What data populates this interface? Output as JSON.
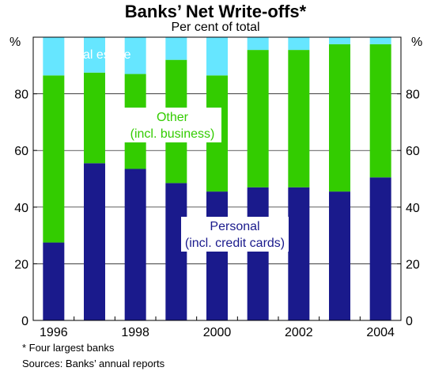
{
  "chart_data": {
    "type": "bar",
    "stacked": true,
    "title": "Banks’ Net Write-offs*",
    "subtitle": "Per cent of total",
    "ylabel_left": "%",
    "ylabel_right": "%",
    "ylim": [
      0,
      100
    ],
    "yticks": [
      0,
      20,
      40,
      60,
      80
    ],
    "xticks": [
      "1996",
      "1998",
      "2000",
      "2002",
      "2004"
    ],
    "categories": [
      "1996",
      "1997",
      "1998",
      "1999",
      "2000",
      "2001",
      "2002",
      "2003",
      "2004"
    ],
    "series": [
      {
        "key": "personal",
        "name": "Personal",
        "sublabel": "(incl. credit cards)",
        "color": "#1a1a8c",
        "values": [
          27.5,
          55.5,
          53.5,
          48.5,
          45.5,
          47,
          47,
          45.5,
          50.5
        ]
      },
      {
        "key": "other",
        "name": "Other",
        "sublabel": "(incl. business)",
        "color": "#33cc00",
        "values": [
          59,
          32,
          33.5,
          43.5,
          41,
          48.5,
          48.5,
          52,
          47
        ]
      },
      {
        "key": "realestate",
        "name": "Real estate",
        "sublabel": "",
        "color": "#66e6ff",
        "values": [
          13.5,
          12.5,
          13,
          8,
          13.5,
          4.5,
          4.5,
          2.5,
          2.5
        ]
      }
    ],
    "grid": true
  },
  "footnotes": {
    "note": "*   Four largest banks",
    "source": "Sources: Banks’ annual reports"
  }
}
